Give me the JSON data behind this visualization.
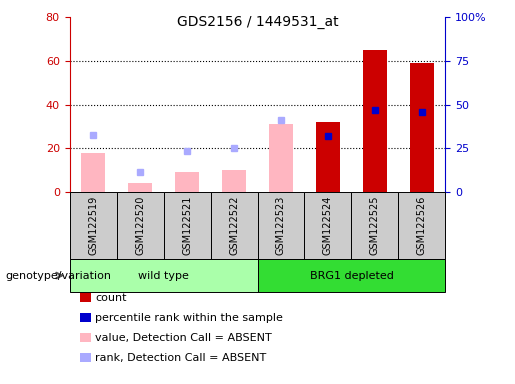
{
  "title": "GDS2156 / 1449531_at",
  "samples": [
    "GSM122519",
    "GSM122520",
    "GSM122521",
    "GSM122522",
    "GSM122523",
    "GSM122524",
    "GSM122525",
    "GSM122526"
  ],
  "count_values": [
    0,
    0,
    0,
    0,
    0,
    32,
    65,
    59
  ],
  "percentile_rank": [
    0,
    0,
    0,
    0,
    0,
    32,
    47,
    46
  ],
  "absent_value": [
    18,
    4,
    9,
    10,
    31,
    0,
    0,
    0
  ],
  "absent_rank": [
    26,
    9,
    19,
    20,
    33,
    0,
    0,
    0
  ],
  "groups": [
    {
      "label": "wild type",
      "start": 0,
      "end": 4,
      "color": "#AAFFAA"
    },
    {
      "label": "BRG1 depleted",
      "start": 4,
      "end": 8,
      "color": "#33DD33"
    }
  ],
  "group_label": "genotype/variation",
  "left_ylim": [
    0,
    80
  ],
  "right_ylim": [
    0,
    100
  ],
  "left_yticks": [
    0,
    20,
    40,
    60,
    80
  ],
  "right_yticks": [
    0,
    25,
    50,
    75,
    100
  ],
  "right_yticklabels": [
    "0",
    "25",
    "50",
    "75",
    "100%"
  ],
  "left_color": "#CC0000",
  "right_color": "#0000CC",
  "absent_bar_color": "#FFB6C1",
  "absent_rank_color": "#AAAAFF",
  "count_bar_color": "#CC0000",
  "percentile_bar_color": "#0000CC",
  "sample_bg_color": "#CCCCCC",
  "plot_bg_color": "#FFFFFF",
  "legend_items": [
    {
      "color": "#CC0000",
      "label": "count"
    },
    {
      "color": "#0000CC",
      "label": "percentile rank within the sample"
    },
    {
      "color": "#FFB6C1",
      "label": "value, Detection Call = ABSENT"
    },
    {
      "color": "#AAAAFF",
      "label": "rank, Detection Call = ABSENT"
    }
  ]
}
